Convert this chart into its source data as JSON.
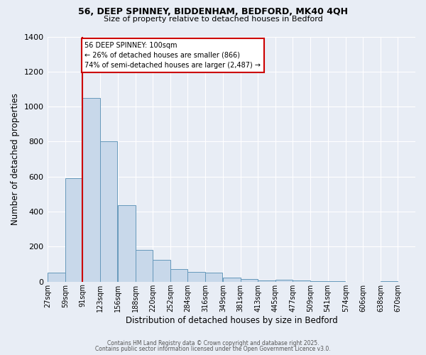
{
  "title1": "56, DEEP SPINNEY, BIDDENHAM, BEDFORD, MK40 4QH",
  "title2": "Size of property relative to detached houses in Bedford",
  "xlabel": "Distribution of detached houses by size in Bedford",
  "ylabel": "Number of detached properties",
  "bar_color": "#c8d8ea",
  "bar_edge_color": "#6699bb",
  "background_color": "#e8edf5",
  "grid_color": "#ffffff",
  "annotation_box_color": "#ffffff",
  "annotation_box_edge": "#cc0000",
  "vline_color": "#cc0000",
  "property_line_x": 91,
  "categories": [
    "27sqm",
    "59sqm",
    "91sqm",
    "123sqm",
    "156sqm",
    "188sqm",
    "220sqm",
    "252sqm",
    "284sqm",
    "316sqm",
    "349sqm",
    "381sqm",
    "413sqm",
    "445sqm",
    "477sqm",
    "509sqm",
    "541sqm",
    "574sqm",
    "606sqm",
    "638sqm",
    "670sqm"
  ],
  "bin_starts": [
    27,
    59,
    91,
    123,
    156,
    188,
    220,
    252,
    284,
    316,
    349,
    381,
    413,
    445,
    477,
    509,
    541,
    574,
    606,
    638,
    670
  ],
  "bin_width": 32,
  "values": [
    50,
    590,
    1050,
    800,
    435,
    180,
    125,
    70,
    55,
    50,
    25,
    15,
    5,
    10,
    5,
    3,
    3,
    0,
    0,
    2,
    0
  ],
  "ylim": [
    0,
    1400
  ],
  "yticks": [
    0,
    200,
    400,
    600,
    800,
    1000,
    1200,
    1400
  ],
  "annotation_line1": "56 DEEP SPINNEY: 100sqm",
  "annotation_line2": "← 26% of detached houses are smaller (866)",
  "annotation_line3": "74% of semi-detached houses are larger (2,487) →",
  "footnote1": "Contains HM Land Registry data © Crown copyright and database right 2025.",
  "footnote2": "Contains public sector information licensed under the Open Government Licence v3.0."
}
